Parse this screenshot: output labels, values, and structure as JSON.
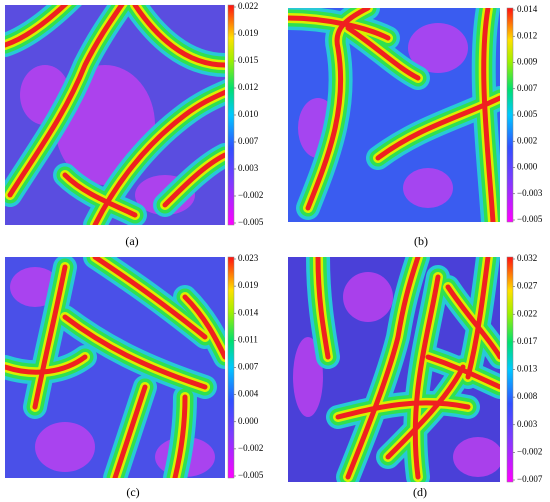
{
  "panels": [
    {
      "label": "(a)",
      "colorbar_ticks": [
        "0.022",
        "0.019",
        "0.015",
        "0.012",
        "0.010",
        "0.007",
        "0.003",
        "−0.002",
        "−0.005"
      ]
    },
    {
      "label": "(b)",
      "colorbar_ticks": [
        "0.014",
        "0.012",
        "0.009",
        "0.007",
        "0.005",
        "0.002",
        "0.000",
        "−0.003",
        "−0.005"
      ]
    },
    {
      "label": "(c)",
      "colorbar_ticks": [
        "0.023",
        "0.019",
        "0.014",
        "0.011",
        "0.007",
        "0.004",
        "0.000",
        "−0.002",
        "−0.005"
      ]
    },
    {
      "label": "(d)",
      "colorbar_ticks": [
        "0.032",
        "0.027",
        "0.022",
        "0.017",
        "0.013",
        "0.008",
        "0.003",
        "−0.002",
        "−0.007"
      ]
    }
  ]
}
